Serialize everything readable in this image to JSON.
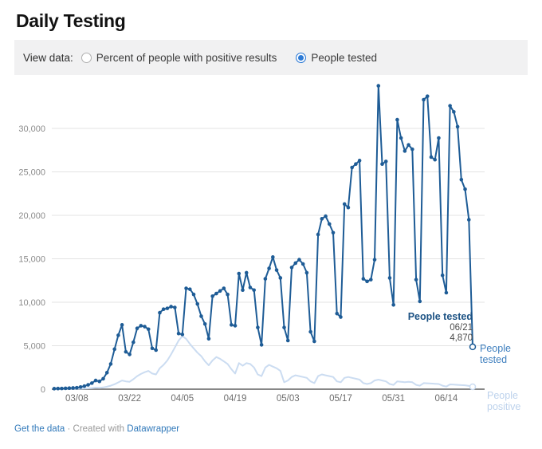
{
  "page": {
    "title": "Daily Testing"
  },
  "controls": {
    "label": "View data:",
    "options": [
      {
        "label": "Percent of people with positive results",
        "selected": false
      },
      {
        "label": "People tested",
        "selected": true
      }
    ]
  },
  "chart_data": {
    "type": "line",
    "title": "Daily Testing",
    "x_start_date": "03/02",
    "x_end_date": "06/21",
    "x_tick_labels": [
      "03/08",
      "03/22",
      "04/05",
      "04/19",
      "05/03",
      "05/17",
      "05/31",
      "06/14"
    ],
    "x_tick_indices": [
      6,
      20,
      34,
      48,
      62,
      76,
      90,
      104
    ],
    "y_ticks": [
      0,
      5000,
      10000,
      15000,
      20000,
      25000,
      30000
    ],
    "y_tick_labels": [
      "0",
      "5,000",
      "10,000",
      "15,000",
      "20,000",
      "25,000",
      "30,000"
    ],
    "ylim": [
      0,
      36000
    ],
    "grid": true,
    "legend_position": "right-end-labels",
    "series": [
      {
        "name": "People tested",
        "color": "#1e5c96",
        "dots": true,
        "values": [
          60,
          70,
          80,
          100,
          120,
          140,
          170,
          250,
          350,
          500,
          700,
          1000,
          900,
          1200,
          1900,
          2900,
          4600,
          6200,
          7400,
          4300,
          4000,
          5400,
          7000,
          7300,
          7200,
          6900,
          4700,
          4500,
          8800,
          9200,
          9300,
          9500,
          9400,
          6400,
          6300,
          11600,
          11500,
          10900,
          9800,
          8400,
          7500,
          5800,
          10700,
          11000,
          11300,
          11600,
          10900,
          7400,
          7300,
          13300,
          11400,
          13400,
          11700,
          11400,
          7100,
          5100,
          12700,
          13900,
          15200,
          13700,
          12800,
          7100,
          5600,
          14000,
          14500,
          14900,
          14400,
          13400,
          6600,
          5500,
          17800,
          19600,
          19900,
          19000,
          18000,
          8700,
          8300,
          21300,
          20900,
          25500,
          25900,
          26300,
          12700,
          12400,
          12600,
          14900,
          34900,
          25900,
          26200,
          12800,
          9700,
          31000,
          28900,
          27400,
          28100,
          27600,
          12600,
          10100,
          33300,
          33700,
          26700,
          26400,
          28900,
          13100,
          11100,
          32600,
          31900,
          30200,
          24100,
          23000,
          19500,
          4870
        ]
      },
      {
        "name": "People positive",
        "color": "#cbdcf1",
        "dots": false,
        "values": [
          10,
          12,
          15,
          18,
          22,
          28,
          35,
          50,
          70,
          95,
          130,
          180,
          160,
          200,
          280,
          400,
          570,
          780,
          1000,
          900,
          850,
          1150,
          1500,
          1750,
          1950,
          2100,
          1800,
          1700,
          2400,
          2800,
          3300,
          4000,
          4800,
          5600,
          6100,
          5800,
          5200,
          4700,
          4200,
          3800,
          3200,
          2750,
          3300,
          3700,
          3500,
          3200,
          2900,
          2300,
          1800,
          3000,
          2700,
          3000,
          2900,
          2500,
          1700,
          1500,
          2500,
          2800,
          2600,
          2400,
          2100,
          800,
          1000,
          1400,
          1600,
          1500,
          1400,
          1300,
          900,
          700,
          1500,
          1700,
          1600,
          1500,
          1400,
          900,
          800,
          1300,
          1400,
          1300,
          1200,
          1100,
          700,
          600,
          700,
          1000,
          1100,
          1000,
          900,
          600,
          500,
          900,
          850,
          800,
          850,
          800,
          500,
          400,
          700,
          680,
          650,
          620,
          600,
          400,
          300,
          550,
          520,
          500,
          470,
          450,
          380,
          280
        ]
      }
    ],
    "annotation": {
      "series_label": "People tested",
      "date": "06/21",
      "value_label": "4,870",
      "value": 4870
    },
    "end_labels": [
      "People tested",
      "People positive"
    ]
  },
  "footer": {
    "get_data": "Get the data",
    "created": "· Created with",
    "datawrapper": "Datawrapper"
  },
  "colors": {
    "accent_blue": "#2e7bd6",
    "line_tested": "#1e5c96",
    "line_positive": "#cbdcf1",
    "axis_baseline": "#878787",
    "gridline": "#e3e3e3"
  }
}
